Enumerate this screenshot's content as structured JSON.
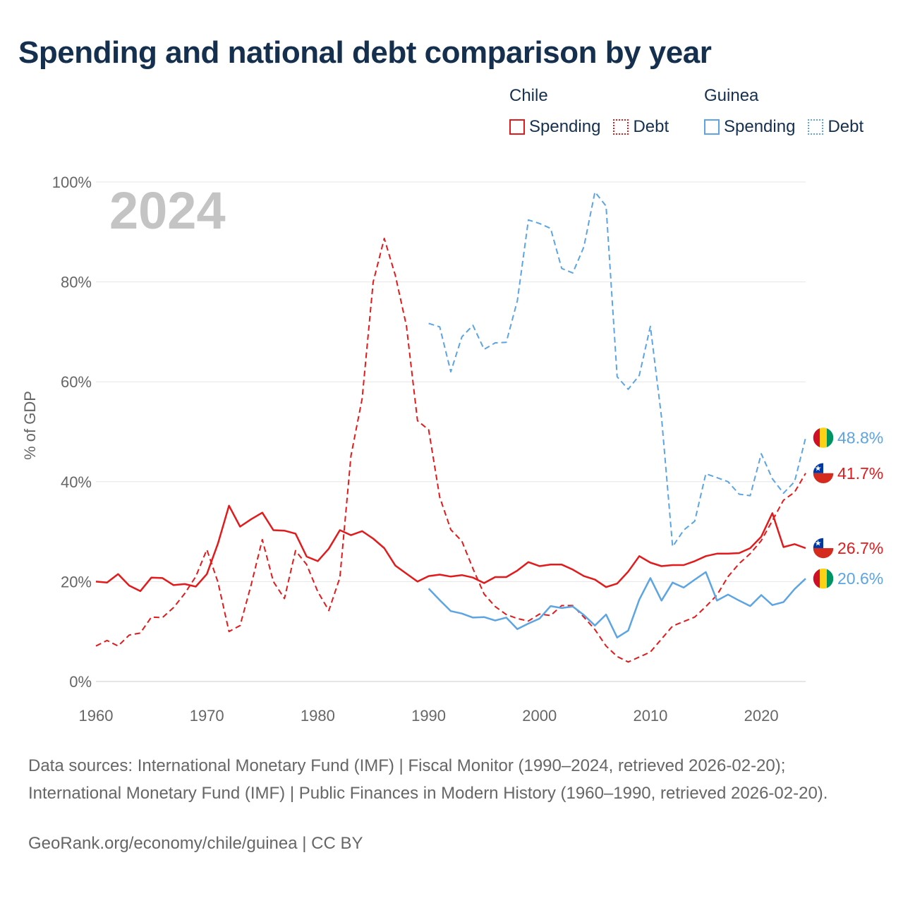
{
  "title": "Spending and national debt comparison by year",
  "legend": {
    "groups": [
      {
        "country": "Chile",
        "spending_label": "Spending",
        "debt_label": "Debt",
        "color": "#e31a1c"
      },
      {
        "country": "Guinea",
        "spending_label": "Spending",
        "debt_label": "Debt",
        "color": "#5ca4e3"
      }
    ]
  },
  "chart_data": {
    "type": "line",
    "title": "Spending and national debt comparison by year",
    "year_watermark": "2024",
    "ylabel": "% of GDP",
    "xlabel": "",
    "xlim": [
      1960,
      2024
    ],
    "ylim": [
      0,
      100
    ],
    "x_ticks": [
      1960,
      1970,
      1980,
      1990,
      2000,
      2010,
      2020
    ],
    "y_ticks": [
      0,
      20,
      40,
      60,
      80,
      100
    ],
    "y_tick_labels": [
      "0%",
      "20%",
      "40%",
      "60%",
      "80%",
      "100%"
    ],
    "grid": true,
    "series": [
      {
        "name": "Chile Spending",
        "country": "Chile",
        "style": "solid",
        "color": "#e31a1c",
        "start_year": 1960,
        "values": [
          20.0,
          19.8,
          21.5,
          19.2,
          18.1,
          20.8,
          20.7,
          19.3,
          19.5,
          19.0,
          21.5,
          27.6,
          35.2,
          31.0,
          32.5,
          33.8,
          30.3,
          30.2,
          29.6,
          25.0,
          24.1,
          26.6,
          30.3,
          29.3,
          30.1,
          28.6,
          26.7,
          23.2,
          21.6,
          20.0,
          21.1,
          21.4,
          21.0,
          21.3,
          20.8,
          19.7,
          20.9,
          20.9,
          22.2,
          23.9,
          23.1,
          23.4,
          23.4,
          22.4,
          21.1,
          20.4,
          18.9,
          19.6,
          22.0,
          25.1,
          23.8,
          23.1,
          23.3,
          23.3,
          24.1,
          25.1,
          25.6,
          25.6,
          25.7,
          26.7,
          29.0,
          33.7,
          26.9,
          27.5,
          26.7
        ],
        "end_label": "26.7%"
      },
      {
        "name": "Chile Debt",
        "country": "Chile",
        "style": "dashed",
        "color": "#e31a1c",
        "start_year": 1960,
        "values": [
          7.1,
          8.2,
          7.1,
          9.3,
          9.7,
          12.9,
          12.8,
          14.8,
          17.6,
          21.0,
          26.4,
          19.9,
          10.0,
          11.2,
          19.4,
          28.4,
          20.0,
          16.6,
          26.2,
          23.4,
          18.0,
          14.2,
          20.8,
          45.2,
          56.6,
          80.0,
          88.7,
          81.3,
          71.2,
          52.2,
          50.4,
          36.9,
          30.4,
          28.1,
          22.6,
          17.5,
          15.0,
          13.4,
          12.6,
          12.1,
          13.5,
          13.2,
          15.2,
          15.2,
          12.9,
          10.4,
          7.1,
          5.0,
          3.9,
          4.9,
          5.9,
          8.5,
          11.1,
          12.0,
          12.9,
          15.0,
          17.3,
          21.0,
          23.6,
          25.6,
          28.2,
          32.2,
          36.3,
          37.9,
          41.7
        ],
        "end_label": "41.7%"
      },
      {
        "name": "Guinea Spending",
        "country": "Guinea",
        "style": "solid",
        "color": "#5ca4e3",
        "start_year": 1990,
        "values": [
          18.6,
          16.3,
          14.1,
          13.6,
          12.8,
          12.9,
          12.2,
          12.8,
          10.5,
          11.6,
          12.6,
          15.1,
          14.7,
          15.0,
          13.3,
          11.2,
          13.4,
          8.8,
          10.2,
          16.4,
          20.7,
          16.2,
          19.8,
          18.8,
          20.4,
          21.9,
          16.2,
          17.4,
          16.2,
          15.1,
          17.3,
          15.3,
          15.9,
          18.5,
          20.6
        ],
        "end_label": "20.6%"
      },
      {
        "name": "Guinea Debt",
        "country": "Guinea",
        "style": "dashed",
        "color": "#5ca4e3",
        "start_year": 1990,
        "values": [
          71.7,
          71.0,
          62.0,
          69.0,
          71.3,
          66.5,
          67.8,
          67.9,
          76.2,
          92.4,
          91.7,
          90.7,
          82.7,
          81.8,
          87.0,
          98.0,
          95.2,
          61.0,
          58.5,
          61.3,
          71.1,
          52.9,
          27.0,
          30.3,
          32.1,
          41.6,
          40.8,
          40.0,
          37.5,
          37.2,
          45.6,
          40.6,
          37.7,
          40.0,
          48.8
        ],
        "end_label": "48.8%"
      }
    ]
  },
  "sources": "Data sources: International Monetary Fund (IMF) | Fiscal Monitor (1990–2024, retrieved 2026-02-20); International Monetary Fund (IMF) | Public Finances in Modern History (1960–1990, retrieved 2026-02-20).",
  "credit": "GeoRank.org/economy/chile/guinea | CC BY"
}
